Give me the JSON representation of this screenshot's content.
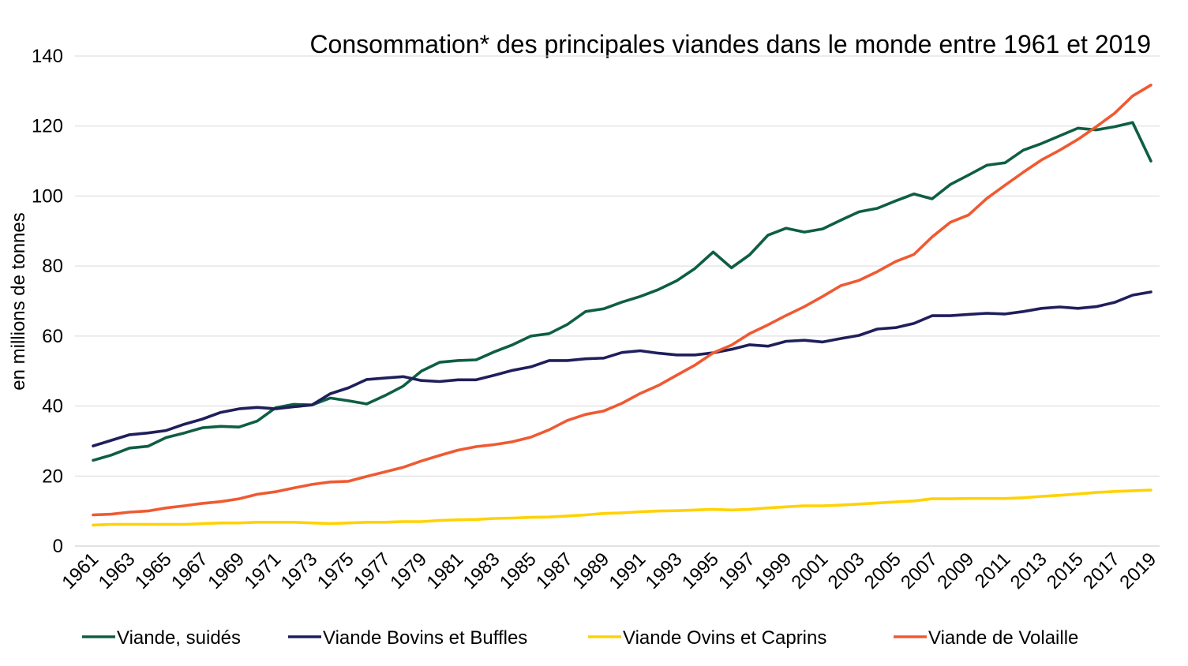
{
  "chart_data": {
    "type": "line",
    "title": "Consommation* des principales viandes dans le monde entre 1961 et 2019",
    "ylabel": "en millions de tonnes",
    "xlabel": "",
    "ylim": [
      0,
      140
    ],
    "yticks": [
      "0",
      "20",
      "40",
      "60",
      "80",
      "100",
      "120",
      "140"
    ],
    "grid": "horizontal",
    "legend_position": "bottom",
    "x": [
      1961,
      1962,
      1963,
      1964,
      1965,
      1966,
      1967,
      1968,
      1969,
      1970,
      1971,
      1972,
      1973,
      1974,
      1975,
      1976,
      1977,
      1978,
      1979,
      1980,
      1981,
      1982,
      1983,
      1984,
      1985,
      1986,
      1987,
      1988,
      1989,
      1990,
      1991,
      1992,
      1993,
      1994,
      1995,
      1996,
      1997,
      1998,
      1999,
      2000,
      2001,
      2002,
      2003,
      2004,
      2005,
      2006,
      2007,
      2008,
      2009,
      2010,
      2011,
      2012,
      2013,
      2014,
      2015,
      2016,
      2017,
      2018,
      2019
    ],
    "xtick_labels": [
      "1961",
      "1963",
      "1965",
      "1967",
      "1969",
      "1971",
      "1973",
      "1975",
      "1977",
      "1979",
      "1981",
      "1983",
      "1985",
      "1987",
      "1989",
      "1991",
      "1993",
      "1995",
      "1997",
      "1999",
      "2001",
      "2003",
      "2005",
      "2007",
      "2009",
      "2011",
      "2013",
      "2015",
      "2017",
      "2019"
    ],
    "series": [
      {
        "name": "Viande, suidés",
        "color": "#0e5e44",
        "values": [
          24.5,
          26,
          28,
          28.5,
          31,
          32.3,
          33.8,
          34.2,
          34,
          35.7,
          39.5,
          40.5,
          40.3,
          42.3,
          41.5,
          40.6,
          43,
          45.7,
          50,
          52.5,
          53,
          53.2,
          55.5,
          57.5,
          60,
          60.7,
          63.3,
          67,
          67.8,
          69.7,
          71.3,
          73.3,
          75.8,
          79.3,
          84,
          79.5,
          83.2,
          88.8,
          90.8,
          89.7,
          90.6,
          93.1,
          95.5,
          96.5,
          98.6,
          100.6,
          99.2,
          103.3,
          106,
          108.8,
          109.5,
          113.1,
          115,
          117.2,
          119.4,
          118.9,
          119.8,
          121,
          110
        ]
      },
      {
        "name": "Viande Bovins et Buffles",
        "color": "#1f1f5c",
        "values": [
          28.6,
          30.2,
          31.8,
          32.3,
          33,
          34.8,
          36.3,
          38.2,
          39.2,
          39.6,
          39.2,
          39.8,
          40.3,
          43.5,
          45.2,
          47.6,
          48,
          48.4,
          47.3,
          47,
          47.5,
          47.5,
          48.8,
          50.2,
          51.2,
          53,
          53,
          53.5,
          53.7,
          55.3,
          55.8,
          55.1,
          54.6,
          54.6,
          55.2,
          56.2,
          57.5,
          57.1,
          58.5,
          58.8,
          58.3,
          59.3,
          60.2,
          62,
          62.4,
          63.6,
          65.8,
          65.8,
          66.2,
          66.5,
          66.3,
          67,
          67.9,
          68.3,
          67.9,
          68.4,
          69.6,
          71.7,
          72.6
        ]
      },
      {
        "name": "Viande Ovins et Caprins",
        "color": "#ffd200",
        "values": [
          6,
          6.2,
          6.2,
          6.2,
          6.2,
          6.2,
          6.4,
          6.6,
          6.6,
          6.8,
          6.8,
          6.8,
          6.6,
          6.4,
          6.6,
          6.8,
          6.8,
          7,
          7,
          7.3,
          7.5,
          7.6,
          7.9,
          8,
          8.2,
          8.3,
          8.6,
          8.9,
          9.3,
          9.5,
          9.8,
          10,
          10.1,
          10.3,
          10.5,
          10.3,
          10.5,
          10.9,
          11.2,
          11.5,
          11.5,
          11.7,
          12,
          12.3,
          12.6,
          12.9,
          13.5,
          13.5,
          13.6,
          13.6,
          13.6,
          13.8,
          14.2,
          14.5,
          14.9,
          15.3,
          15.6,
          15.8,
          16
        ]
      },
      {
        "name": "Viande de Volaille",
        "color": "#ef5a32",
        "values": [
          8.9,
          9.1,
          9.7,
          10,
          10.9,
          11.5,
          12.2,
          12.7,
          13.5,
          14.8,
          15.5,
          16.6,
          17.6,
          18.3,
          18.5,
          19.9,
          21.2,
          22.5,
          24.3,
          25.9,
          27.4,
          28.4,
          29,
          29.8,
          31.1,
          33.2,
          35.9,
          37.6,
          38.6,
          40.8,
          43.6,
          45.9,
          48.8,
          51.7,
          55.2,
          57.4,
          60.7,
          63.2,
          65.9,
          68.4,
          71.3,
          74.4,
          75.9,
          78.4,
          81.3,
          83.3,
          88.3,
          92.5,
          94.6,
          99.3,
          103.1,
          106.8,
          110.3,
          113.1,
          116.2,
          119.8,
          123.6,
          128.6,
          131.7
        ]
      }
    ]
  }
}
